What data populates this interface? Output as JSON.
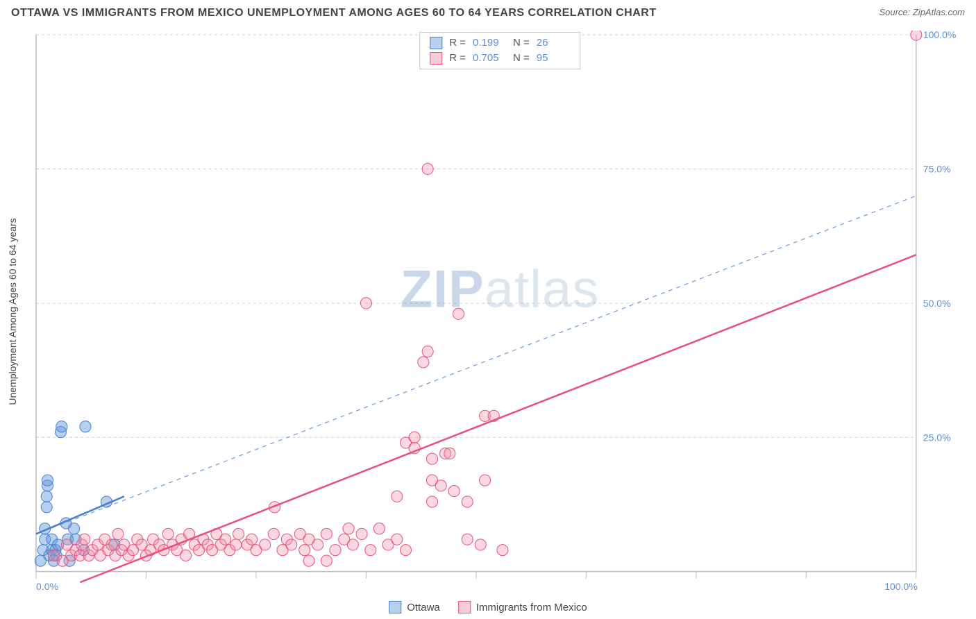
{
  "title": "OTTAWA VS IMMIGRANTS FROM MEXICO UNEMPLOYMENT AMONG AGES 60 TO 64 YEARS CORRELATION CHART",
  "source_label": "Source: ZipAtlas.com",
  "y_axis_label": "Unemployment Among Ages 60 to 64 years",
  "watermark_a": "ZIP",
  "watermark_b": "atlas",
  "chart": {
    "type": "scatter",
    "background_color": "#ffffff",
    "grid_color": "#d0d0d0",
    "axis_color": "#bdbdbd",
    "xlim": [
      0,
      100
    ],
    "ylim": [
      0,
      100
    ],
    "x_ticks": [
      0,
      12.5,
      25,
      37.5,
      50,
      62.5,
      75,
      87.5,
      100
    ],
    "x_tick_labels": {
      "0": "0.0%",
      "100": "100.0%"
    },
    "y_ticks": [
      0,
      25,
      50,
      75,
      100
    ],
    "y_tick_labels": {
      "0": "0.0%",
      "25": "25.0%",
      "50": "50.0%",
      "75": "75.0%",
      "100": "100.0%"
    },
    "marker_radius": 8,
    "series": [
      {
        "name": "Ottawa",
        "key": "ottawa",
        "color_fill": "rgba(96,150,220,0.45)",
        "color_stroke": "#4a7fc9",
        "r_value": "0.199",
        "n_value": "26",
        "trend_solid": {
          "x1": 0,
          "y1": 7,
          "x2": 10,
          "y2": 14
        },
        "trend_dash": {
          "x1": 0,
          "y1": 7,
          "x2": 100,
          "y2": 70
        },
        "points": [
          [
            0.5,
            2
          ],
          [
            0.8,
            4
          ],
          [
            1,
            6
          ],
          [
            1,
            8
          ],
          [
            1.2,
            12
          ],
          [
            1.2,
            14
          ],
          [
            1.3,
            16
          ],
          [
            1.3,
            17
          ],
          [
            1.8,
            4
          ],
          [
            1.8,
            6
          ],
          [
            2.2,
            4
          ],
          [
            2.3,
            3
          ],
          [
            2.5,
            5
          ],
          [
            2.8,
            26
          ],
          [
            2.9,
            27
          ],
          [
            3.4,
            9
          ],
          [
            3.6,
            6
          ],
          [
            3.8,
            2
          ],
          [
            4.3,
            8
          ],
          [
            4.5,
            6
          ],
          [
            5.4,
            4
          ],
          [
            5.6,
            27
          ],
          [
            8.0,
            13
          ],
          [
            8.9,
            5
          ],
          [
            2.0,
            2
          ],
          [
            1.5,
            3
          ]
        ]
      },
      {
        "name": "Immigrants from Mexico",
        "key": "mexico",
        "color_fill": "rgba(240,140,170,0.35)",
        "color_stroke": "#e6537a",
        "r_value": "0.705",
        "n_value": "95",
        "trend_solid": {
          "x1": 5,
          "y1": -2,
          "x2": 100,
          "y2": 59
        },
        "points": [
          [
            2,
            3
          ],
          [
            3,
            2
          ],
          [
            3.5,
            5
          ],
          [
            4,
            3
          ],
          [
            4.5,
            4
          ],
          [
            5,
            3
          ],
          [
            5.2,
            5
          ],
          [
            5.5,
            6
          ],
          [
            6,
            3
          ],
          [
            6.4,
            4
          ],
          [
            7,
            5
          ],
          [
            7.3,
            3
          ],
          [
            7.8,
            6
          ],
          [
            8.2,
            4
          ],
          [
            8.6,
            5
          ],
          [
            9,
            3
          ],
          [
            9.3,
            7
          ],
          [
            9.7,
            4
          ],
          [
            10,
            5
          ],
          [
            10.5,
            3
          ],
          [
            11,
            4
          ],
          [
            11.5,
            6
          ],
          [
            12,
            5
          ],
          [
            12.5,
            3
          ],
          [
            13,
            4
          ],
          [
            13.3,
            6
          ],
          [
            14,
            5
          ],
          [
            14.5,
            4
          ],
          [
            15,
            7
          ],
          [
            15.5,
            5
          ],
          [
            16,
            4
          ],
          [
            16.5,
            6
          ],
          [
            17,
            3
          ],
          [
            17.4,
            7
          ],
          [
            18,
            5
          ],
          [
            18.5,
            4
          ],
          [
            19,
            6
          ],
          [
            19.5,
            5
          ],
          [
            20,
            4
          ],
          [
            20.5,
            7
          ],
          [
            21,
            5
          ],
          [
            21.5,
            6
          ],
          [
            22,
            4
          ],
          [
            22.7,
            5
          ],
          [
            23,
            7
          ],
          [
            24,
            5
          ],
          [
            24.5,
            6
          ],
          [
            25,
            4
          ],
          [
            26,
            5
          ],
          [
            27,
            7
          ],
          [
            27.1,
            12
          ],
          [
            28,
            4
          ],
          [
            28.5,
            6
          ],
          [
            29,
            5
          ],
          [
            30,
            7
          ],
          [
            30.5,
            4
          ],
          [
            31,
            6
          ],
          [
            32,
            5
          ],
          [
            33,
            7
          ],
          [
            34,
            4
          ],
          [
            35,
            6
          ],
          [
            35.5,
            8
          ],
          [
            36,
            5
          ],
          [
            37,
            7
          ],
          [
            38,
            4
          ],
          [
            37.5,
            50
          ],
          [
            39,
            8
          ],
          [
            40,
            5
          ],
          [
            41,
            6
          ],
          [
            42,
            4
          ],
          [
            42,
            24
          ],
          [
            43,
            23
          ],
          [
            43,
            25
          ],
          [
            44,
            39
          ],
          [
            44.5,
            41
          ],
          [
            44.5,
            75
          ],
          [
            45,
            21
          ],
          [
            45,
            17
          ],
          [
            45,
            13
          ],
          [
            46,
            16
          ],
          [
            46.5,
            22
          ],
          [
            47,
            22
          ],
          [
            47.5,
            15
          ],
          [
            48,
            48
          ],
          [
            49,
            6
          ],
          [
            50.5,
            5
          ],
          [
            51,
            29
          ],
          [
            52,
            29
          ],
          [
            51,
            17
          ],
          [
            49,
            13
          ],
          [
            41,
            14
          ],
          [
            31,
            2
          ],
          [
            33,
            2
          ],
          [
            53,
            4
          ],
          [
            100,
            100
          ]
        ]
      }
    ]
  },
  "legend_top": {
    "r_label": "R  =",
    "n_label": "N  ="
  },
  "legend_bottom": {
    "items": [
      "Ottawa",
      "Immigrants from Mexico"
    ]
  }
}
